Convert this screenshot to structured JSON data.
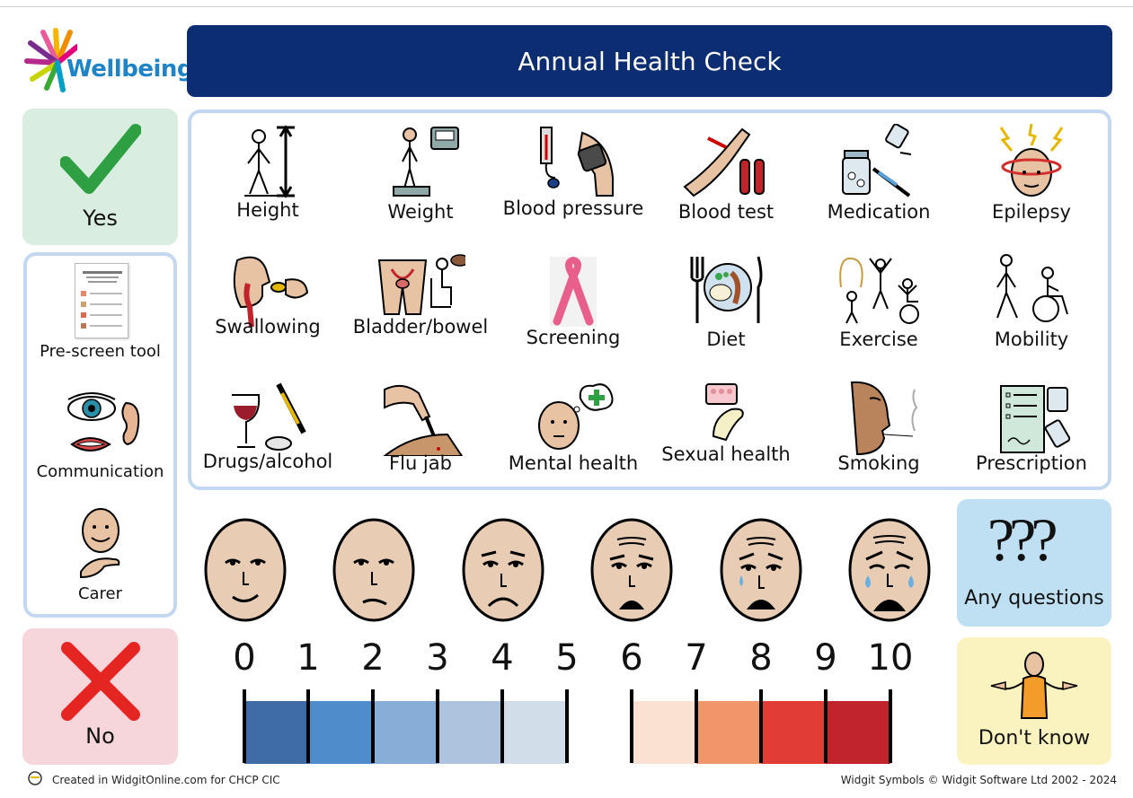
{
  "brand": {
    "logo_text": "Wellbeing"
  },
  "header": {
    "title": "Annual Health Check"
  },
  "answers": {
    "yes_label": "Yes",
    "no_label": "No"
  },
  "side_panel": {
    "pre_screen_label": "Pre-screen tool",
    "communication_label": "Communication",
    "carer_label": "Carer"
  },
  "topics": [
    {
      "label": "Height",
      "icon": "height-icon"
    },
    {
      "label": "Weight",
      "icon": "weight-icon"
    },
    {
      "label": "Blood pressure",
      "icon": "blood-pressure-icon"
    },
    {
      "label": "Blood test",
      "icon": "blood-test-icon"
    },
    {
      "label": "Medication",
      "icon": "medication-icon"
    },
    {
      "label": "Epilepsy",
      "icon": "epilepsy-icon"
    },
    {
      "label": "Swallowing",
      "icon": "swallowing-icon"
    },
    {
      "label": "Bladder/bowel",
      "icon": "bladder-bowel-icon"
    },
    {
      "label": "Screening",
      "icon": "screening-ribbon-icon"
    },
    {
      "label": "Diet",
      "icon": "diet-icon"
    },
    {
      "label": "Exercise",
      "icon": "exercise-icon"
    },
    {
      "label": "Mobility",
      "icon": "mobility-icon"
    },
    {
      "label": "Drugs/alcohol",
      "icon": "drugs-alcohol-icon"
    },
    {
      "label": "Flu jab",
      "icon": "flu-jab-icon"
    },
    {
      "label": "Mental health",
      "icon": "mental-health-icon"
    },
    {
      "label": "Sexual health",
      "icon": "sexual-health-icon"
    },
    {
      "label": "Smoking",
      "icon": "smoking-icon"
    },
    {
      "label": "Prescription",
      "icon": "prescription-icon"
    }
  ],
  "pain_scale": {
    "numbers": [
      "0",
      "1",
      "2",
      "3",
      "4",
      "5",
      "6",
      "7",
      "8",
      "9",
      "10"
    ],
    "faces": [
      "face-0-icon",
      "face-2-icon",
      "face-4-icon",
      "face-6-icon",
      "face-8-icon",
      "face-10-icon"
    ],
    "colors": [
      "#3f6ca6",
      "#4f8ccb",
      "#87aed6",
      "#aec3de",
      "#d1dde9",
      "#ffffff",
      "#fbe1d2",
      "#f0966a",
      "#e23d34",
      "#c1242a"
    ]
  },
  "right_cards": {
    "questions_label": "Any questions",
    "dont_know_label": "Don't know"
  },
  "footer": {
    "left": "Created in WidgitOnline.com for CHCP CIC",
    "right": "Widgit Symbols © Widgit Software Ltd 2002 - 2024"
  }
}
